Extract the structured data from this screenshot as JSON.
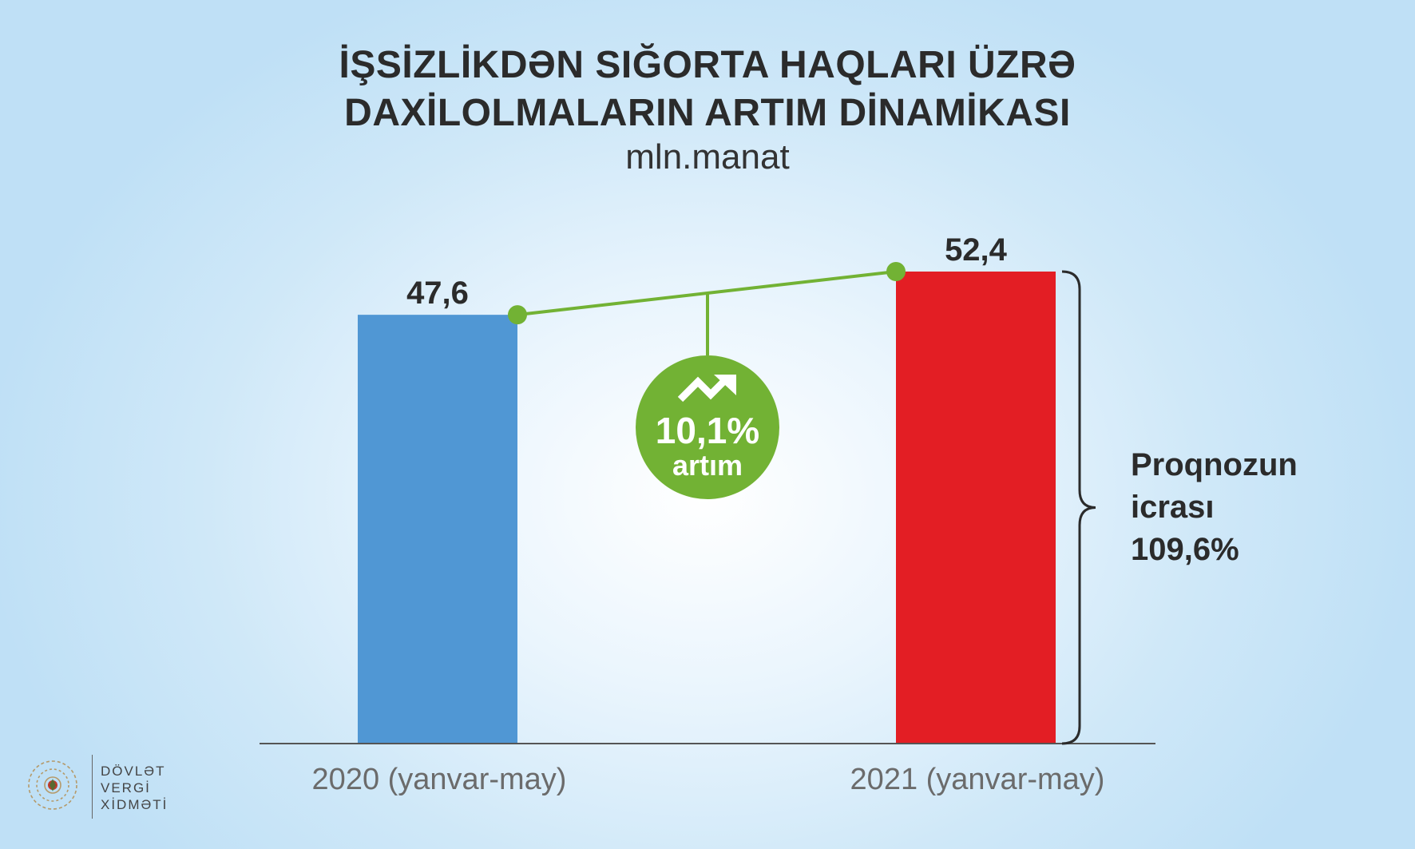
{
  "title": {
    "line1": "İŞSİZLİKDƏN SIĞORTA HAQLARI ÜZRƏ",
    "line2": "DAXİLOLMALARIN ARTIM DİNAMİKASI"
  },
  "subtitle": "mln.manat",
  "chart_data": {
    "type": "bar",
    "categories": [
      "2020 (yanvar-may)",
      "2021 (yanvar-may)"
    ],
    "values": [
      47.6,
      52.4
    ],
    "value_labels": [
      "47,6",
      "52,4"
    ],
    "colors": [
      "#5097d4",
      "#e31e24"
    ],
    "ylim": [
      0,
      52.4
    ],
    "grid": false,
    "growth_badge": {
      "value": "10,1%",
      "label": "artım",
      "color": "#72b234"
    },
    "forecast_note": {
      "line1": "Proqnozun",
      "line2": "icrası",
      "line3": "109,6%"
    }
  },
  "logo": {
    "line1": "DÖVLƏT",
    "line2": "VERGİ",
    "line3": "XİDMƏTİ"
  }
}
